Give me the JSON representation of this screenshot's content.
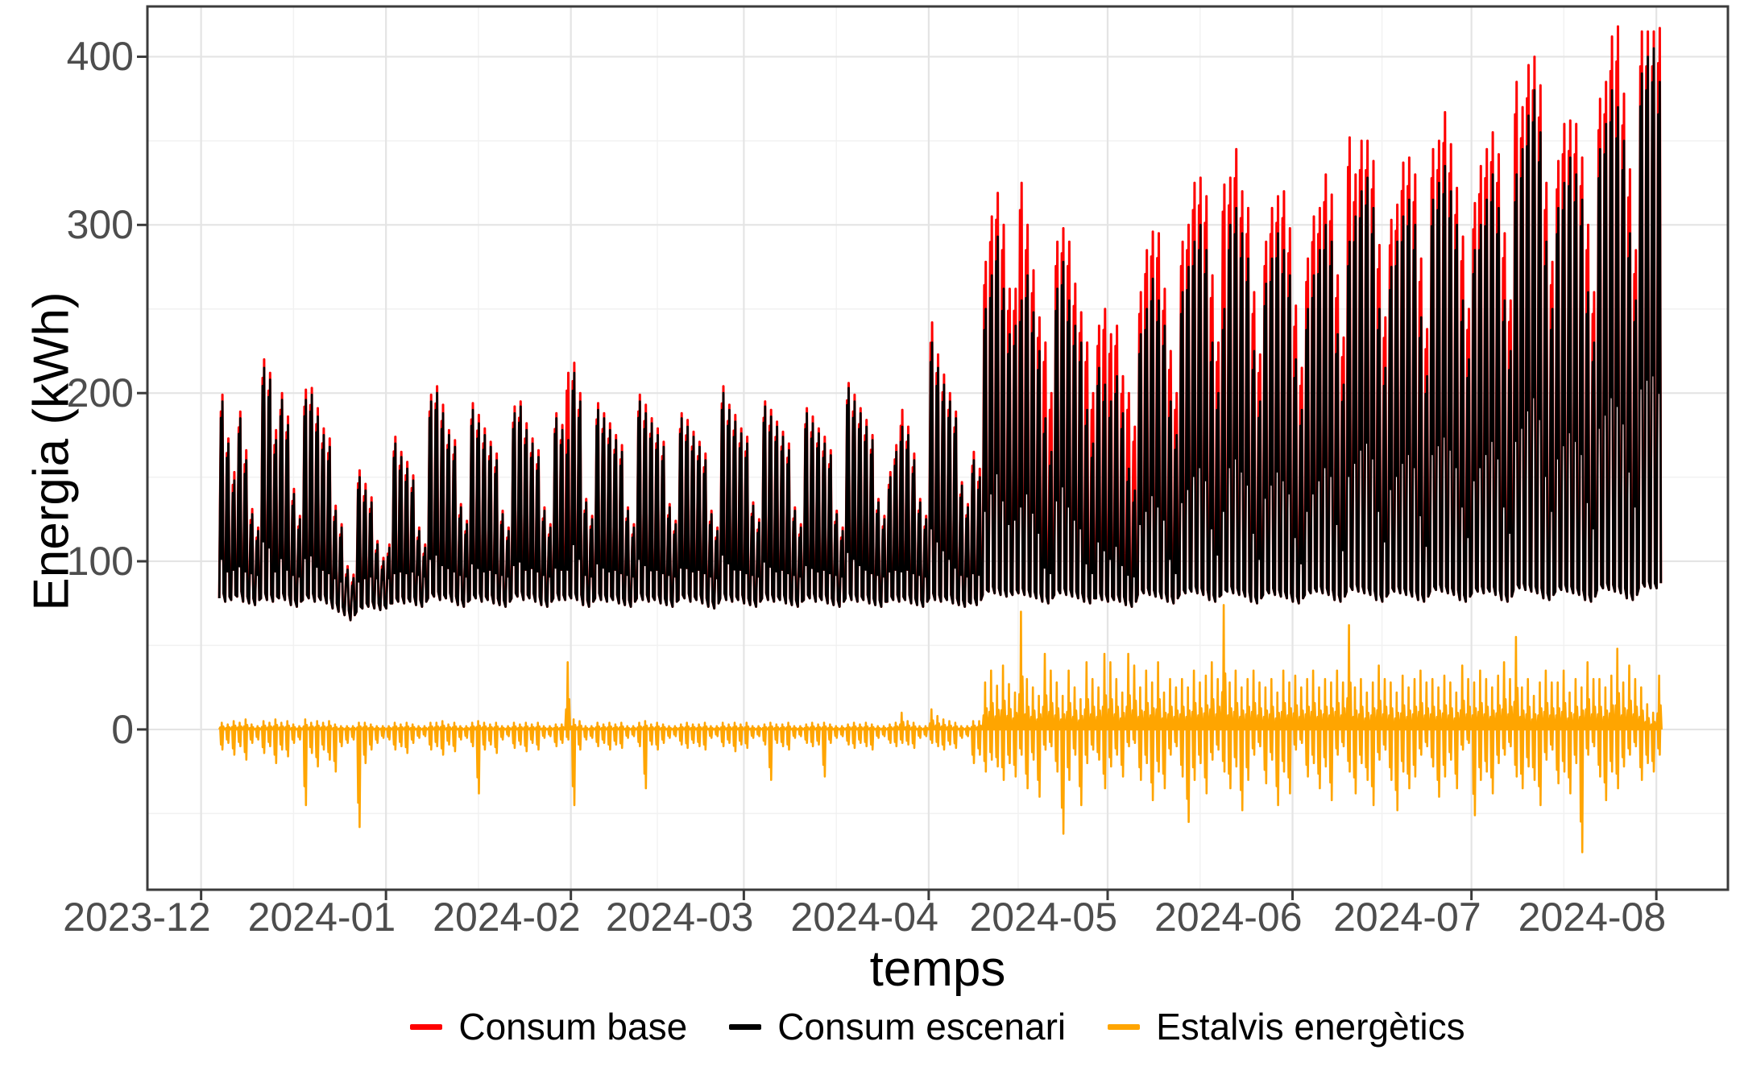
{
  "chart_data": {
    "type": "line",
    "title": "",
    "xlabel": "temps",
    "ylabel": "Energia (kWh)",
    "x_tick_labels": [
      "2023-12",
      "2024-01",
      "2024-02",
      "2024-03",
      "2024-04",
      "2024-05",
      "2024-06",
      "2024-07",
      "2024-08"
    ],
    "x_tick_day_offsets": [
      0,
      31,
      62,
      91,
      122,
      152,
      183,
      213,
      244
    ],
    "x_minor_day_offsets": [
      15.5,
      46.5,
      76.5,
      106.5,
      137,
      167.5,
      198,
      228.5
    ],
    "y_ticks": [
      0,
      100,
      200,
      300,
      400
    ],
    "y_minor_ticks": [
      -50,
      50,
      150,
      250,
      350
    ],
    "xlim_days": [
      -9,
      256
    ],
    "ylim": [
      -95.3,
      429.9
    ],
    "grid": true,
    "legend_position": "bottom",
    "series": [
      {
        "name": "Consum base",
        "color": "#FF0000"
      },
      {
        "name": "Consum escenari",
        "color": "#000000"
      },
      {
        "name": "Estalvis energètics",
        "color": "#FFA500"
      }
    ],
    "daily_start_date": "2023-12-04",
    "daily_start_offset": 3,
    "daily_columns": [
      "escenari_peak_kWh",
      "savings_min_kWh",
      "savings_max_kWh",
      "night_base_kWh"
    ],
    "note": "Daily envelope values estimated from the plot. Consum base peak = escenari peak + max(0, savings_max). Savings oscillate around 0.",
    "days": [
      [
        195,
        -12,
        4,
        78
      ],
      [
        170,
        -8,
        3,
        76
      ],
      [
        148,
        -15,
        5,
        77
      ],
      [
        185,
        -10,
        4,
        79
      ],
      [
        160,
        -18,
        6,
        76
      ],
      [
        128,
        -8,
        3,
        75
      ],
      [
        118,
        -6,
        2,
        74
      ],
      [
        215,
        -14,
        5,
        78
      ],
      [
        208,
        -10,
        4,
        77
      ],
      [
        172,
        -20,
        6,
        76
      ],
      [
        196,
        -12,
        4,
        78
      ],
      [
        181,
        -16,
        5,
        77
      ],
      [
        140,
        -8,
        3,
        74
      ],
      [
        125,
        -6,
        2,
        73
      ],
      [
        196,
        -45,
        6,
        77
      ],
      [
        199,
        -14,
        4,
        78
      ],
      [
        186,
        -22,
        5,
        76
      ],
      [
        175,
        -12,
        4,
        77
      ],
      [
        168,
        -18,
        5,
        75
      ],
      [
        130,
        -25,
        3,
        72
      ],
      [
        120,
        -10,
        2,
        70
      ],
      [
        95,
        -8,
        2,
        68
      ],
      [
        90,
        -6,
        2,
        65
      ],
      [
        150,
        -58,
        4,
        70
      ],
      [
        142,
        -20,
        4,
        72
      ],
      [
        135,
        -12,
        3,
        73
      ],
      [
        110,
        -8,
        2,
        72
      ],
      [
        100,
        -5,
        2,
        71
      ],
      [
        108,
        -6,
        2,
        72
      ],
      [
        170,
        -12,
        4,
        75
      ],
      [
        162,
        -10,
        3,
        76
      ],
      [
        155,
        -14,
        4,
        75
      ],
      [
        148,
        -8,
        3,
        76
      ],
      [
        118,
        -5,
        2,
        74
      ],
      [
        108,
        -4,
        2,
        73
      ],
      [
        195,
        -12,
        4,
        78
      ],
      [
        200,
        -10,
        4,
        79
      ],
      [
        188,
        -15,
        5,
        77
      ],
      [
        175,
        -9,
        3,
        78
      ],
      [
        168,
        -13,
        4,
        76
      ],
      [
        132,
        -6,
        2,
        74
      ],
      [
        122,
        -5,
        2,
        73
      ],
      [
        190,
        -10,
        4,
        77
      ],
      [
        182,
        -38,
        5,
        78
      ],
      [
        175,
        -12,
        4,
        76
      ],
      [
        168,
        -9,
        3,
        77
      ],
      [
        160,
        -14,
        4,
        75
      ],
      [
        128,
        -6,
        2,
        74
      ],
      [
        118,
        -4,
        2,
        73
      ],
      [
        188,
        -11,
        4,
        78
      ],
      [
        192,
        -9,
        3,
        79
      ],
      [
        178,
        -13,
        4,
        77
      ],
      [
        170,
        -8,
        3,
        78
      ],
      [
        162,
        -12,
        4,
        76
      ],
      [
        130,
        -5,
        2,
        74
      ],
      [
        120,
        -4,
        2,
        73
      ],
      [
        185,
        -10,
        3,
        78
      ],
      [
        178,
        -8,
        3,
        77
      ],
      [
        172,
        -6,
        40,
        77
      ],
      [
        212,
        -45,
        6,
        78
      ],
      [
        195,
        -12,
        5,
        77
      ],
      [
        135,
        -6,
        2,
        74
      ],
      [
        125,
        -5,
        2,
        73
      ],
      [
        190,
        -10,
        4,
        78
      ],
      [
        185,
        -8,
        3,
        77
      ],
      [
        178,
        -12,
        4,
        76
      ],
      [
        172,
        -9,
        3,
        77
      ],
      [
        165,
        -11,
        4,
        75
      ],
      [
        130,
        -5,
        2,
        74
      ],
      [
        120,
        -4,
        2,
        73
      ],
      [
        195,
        -10,
        4,
        78
      ],
      [
        188,
        -35,
        5,
        77
      ],
      [
        182,
        -9,
        3,
        76
      ],
      [
        175,
        -12,
        4,
        77
      ],
      [
        168,
        -8,
        3,
        75
      ],
      [
        132,
        -5,
        2,
        74
      ],
      [
        122,
        -4,
        2,
        73
      ],
      [
        185,
        -9,
        3,
        77
      ],
      [
        180,
        -11,
        4,
        78
      ],
      [
        174,
        -8,
        3,
        76
      ],
      [
        168,
        -10,
        3,
        77
      ],
      [
        160,
        -12,
        4,
        75
      ],
      [
        128,
        -5,
        2,
        73
      ],
      [
        118,
        -4,
        2,
        72
      ],
      [
        200,
        -10,
        4,
        78
      ],
      [
        190,
        -8,
        3,
        77
      ],
      [
        183,
        -13,
        4,
        76
      ],
      [
        176,
        -9,
        3,
        77
      ],
      [
        170,
        -11,
        4,
        75
      ],
      [
        133,
        -5,
        2,
        74
      ],
      [
        123,
        -4,
        2,
        73
      ],
      [
        192,
        -9,
        3,
        78
      ],
      [
        186,
        -30,
        4,
        77
      ],
      [
        180,
        -8,
        3,
        76
      ],
      [
        174,
        -10,
        3,
        77
      ],
      [
        166,
        -12,
        4,
        75
      ],
      [
        130,
        -5,
        2,
        74
      ],
      [
        120,
        -4,
        2,
        73
      ],
      [
        188,
        -8,
        3,
        77
      ],
      [
        182,
        -10,
        4,
        78
      ],
      [
        176,
        -9,
        3,
        76
      ],
      [
        170,
        -28,
        4,
        77
      ],
      [
        163,
        -8,
        3,
        75
      ],
      [
        128,
        -5,
        2,
        74
      ],
      [
        118,
        -4,
        2,
        73
      ],
      [
        203,
        -9,
        3,
        78
      ],
      [
        195,
        -11,
        4,
        77
      ],
      [
        188,
        -8,
        3,
        76
      ],
      [
        180,
        -10,
        4,
        77
      ],
      [
        172,
        -12,
        3,
        75
      ],
      [
        135,
        -5,
        2,
        74
      ],
      [
        125,
        -4,
        2,
        73
      ],
      [
        150,
        -8,
        3,
        76
      ],
      [
        165,
        -10,
        4,
        77
      ],
      [
        180,
        -8,
        10,
        76
      ],
      [
        175,
        -9,
        5,
        77
      ],
      [
        160,
        -11,
        4,
        75
      ],
      [
        135,
        -5,
        2,
        74
      ],
      [
        125,
        -4,
        2,
        73
      ],
      [
        230,
        -8,
        12,
        78
      ],
      [
        215,
        -10,
        8,
        77
      ],
      [
        205,
        -12,
        6,
        76
      ],
      [
        195,
        -9,
        5,
        77
      ],
      [
        185,
        -11,
        4,
        75
      ],
      [
        145,
        -5,
        2,
        74
      ],
      [
        132,
        -4,
        2,
        73
      ],
      [
        160,
        -20,
        5,
        75
      ],
      [
        150,
        -15,
        5,
        74
      ],
      [
        250,
        -25,
        28,
        80
      ],
      [
        270,
        -18,
        35,
        82
      ],
      [
        293,
        -22,
        26,
        81
      ],
      [
        262,
        -30,
        38,
        80
      ],
      [
        235,
        -20,
        27,
        79
      ],
      [
        240,
        -28,
        22,
        80
      ],
      [
        255,
        -15,
        70,
        81
      ],
      [
        270,
        -35,
        30,
        80
      ],
      [
        248,
        -18,
        25,
        79
      ],
      [
        225,
        -40,
        20,
        78
      ],
      [
        185,
        -12,
        45,
        76
      ],
      [
        165,
        -10,
        35,
        75
      ],
      [
        262,
        -25,
        28,
        80
      ],
      [
        278,
        -62,
        20,
        81
      ],
      [
        255,
        -30,
        35,
        80
      ],
      [
        240,
        -15,
        25,
        79
      ],
      [
        230,
        -45,
        18,
        78
      ],
      [
        190,
        -20,
        40,
        76
      ],
      [
        170,
        -12,
        30,
        75
      ],
      [
        215,
        -18,
        25,
        78
      ],
      [
        205,
        -35,
        45,
        77
      ],
      [
        195,
        -22,
        40,
        76
      ],
      [
        210,
        -15,
        30,
        77
      ],
      [
        188,
        -28,
        22,
        76
      ],
      [
        155,
        -10,
        45,
        74
      ],
      [
        142,
        -8,
        38,
        73
      ],
      [
        235,
        -30,
        25,
        80
      ],
      [
        250,
        -20,
        35,
        81
      ],
      [
        268,
        -42,
        28,
        80
      ],
      [
        255,
        -25,
        40,
        79
      ],
      [
        240,
        -35,
        22,
        78
      ],
      [
        195,
        -15,
        30,
        76
      ],
      [
        175,
        -10,
        25,
        75
      ],
      [
        260,
        -28,
        30,
        80
      ],
      [
        275,
        -55,
        25,
        81
      ],
      [
        290,
        -30,
        35,
        82
      ],
      [
        300,
        -20,
        28,
        81
      ],
      [
        285,
        -38,
        32,
        80
      ],
      [
        230,
        -18,
        40,
        77
      ],
      [
        200,
        -12,
        30,
        76
      ],
      [
        250,
        -25,
        74,
        80
      ],
      [
        300,
        -35,
        28,
        82
      ],
      [
        310,
        -22,
        35,
        81
      ],
      [
        295,
        -48,
        25,
        80
      ],
      [
        280,
        -30,
        30,
        79
      ],
      [
        225,
        -15,
        35,
        76
      ],
      [
        195,
        -10,
        28,
        75
      ],
      [
        265,
        -32,
        25,
        80
      ],
      [
        280,
        -18,
        30,
        81
      ],
      [
        295,
        -45,
        22,
        80
      ],
      [
        285,
        -25,
        35,
        79
      ],
      [
        270,
        -38,
        28,
        78
      ],
      [
        220,
        -12,
        32,
        76
      ],
      [
        190,
        -8,
        25,
        75
      ],
      [
        250,
        -28,
        30,
        80
      ],
      [
        270,
        -20,
        35,
        81
      ],
      [
        285,
        -35,
        25,
        82
      ],
      [
        300,
        -22,
        30,
        81
      ],
      [
        290,
        -42,
        28,
        80
      ],
      [
        235,
        -15,
        35,
        77
      ],
      [
        205,
        -10,
        28,
        76
      ],
      [
        290,
        -25,
        62,
        82
      ],
      [
        305,
        -38,
        25,
        83
      ],
      [
        320,
        -20,
        30,
        82
      ],
      [
        328,
        -30,
        22,
        81
      ],
      [
        310,
        -45,
        28,
        80
      ],
      [
        250,
        -18,
        38,
        77
      ],
      [
        215,
        -12,
        30,
        76
      ],
      [
        275,
        -30,
        28,
        81
      ],
      [
        290,
        -48,
        22,
        82
      ],
      [
        305,
        -25,
        32,
        81
      ],
      [
        315,
        -35,
        25,
        80
      ],
      [
        300,
        -28,
        30,
        79
      ],
      [
        245,
        -15,
        35,
        77
      ],
      [
        210,
        -10,
        28,
        76
      ],
      [
        315,
        -22,
        30,
        82
      ],
      [
        325,
        -40,
        25,
        83
      ],
      [
        335,
        -28,
        32,
        82
      ],
      [
        320,
        -18,
        28,
        81
      ],
      [
        300,
        -35,
        22,
        80
      ],
      [
        255,
        -12,
        38,
        77
      ],
      [
        220,
        -8,
        30,
        76
      ],
      [
        285,
        -51,
        28,
        81
      ],
      [
        300,
        -30,
        35,
        82
      ],
      [
        315,
        -25,
        30,
        81
      ],
      [
        330,
        -38,
        25,
        82
      ],
      [
        310,
        -20,
        32,
        80
      ],
      [
        255,
        -15,
        40,
        77
      ],
      [
        225,
        -10,
        30,
        76
      ],
      [
        330,
        -28,
        55,
        83
      ],
      [
        345,
        -35,
        25,
        84
      ],
      [
        365,
        -22,
        30,
        83
      ],
      [
        380,
        -30,
        20,
        82
      ],
      [
        355,
        -45,
        28,
        81
      ],
      [
        290,
        -18,
        35,
        78
      ],
      [
        250,
        -12,
        28,
        77
      ],
      [
        310,
        -32,
        28,
        82
      ],
      [
        325,
        -25,
        35,
        83
      ],
      [
        340,
        -38,
        22,
        82
      ],
      [
        330,
        -20,
        30,
        81
      ],
      [
        315,
        -73,
        25,
        80
      ],
      [
        260,
        -15,
        40,
        77
      ],
      [
        230,
        -10,
        30,
        76
      ],
      [
        345,
        -28,
        30,
        83
      ],
      [
        360,
        -42,
        25,
        84
      ],
      [
        380,
        -25,
        32,
        83
      ],
      [
        370,
        -35,
        48,
        82
      ],
      [
        350,
        -22,
        28,
        81
      ],
      [
        295,
        -15,
        38,
        78
      ],
      [
        255,
        -10,
        30,
        77
      ],
      [
        390,
        -30,
        25,
        84
      ],
      [
        400,
        -20,
        15,
        85
      ],
      [
        405,
        -25,
        10,
        84
      ],
      [
        385,
        -15,
        32,
        84
      ]
    ]
  },
  "style_colors": {
    "axis_text": "#4D4D4D",
    "panel_border": "#3B3B3B",
    "grid_major": "#E4E4E4",
    "grid_minor": "#F1F1F1"
  },
  "legend": {
    "items": [
      {
        "label": "Consum base",
        "color": "#FF0000"
      },
      {
        "label": "Consum escenari",
        "color": "#000000"
      },
      {
        "label": "Estalvis energètics",
        "color": "#FFA500"
      }
    ]
  }
}
